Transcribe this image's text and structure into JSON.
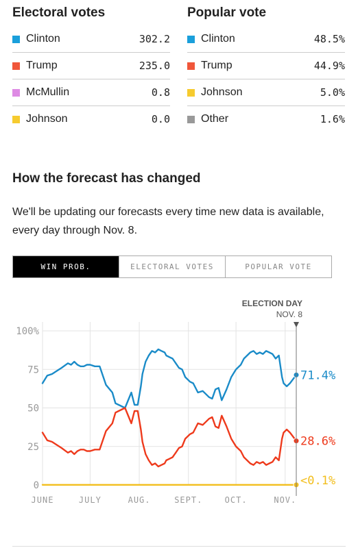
{
  "electoral": {
    "title": "Electoral votes",
    "rows": [
      {
        "name": "Clinton",
        "value": "302.2",
        "color": "#1a9fdb"
      },
      {
        "name": "Trump",
        "value": "235.0",
        "color": "#f0563a"
      },
      {
        "name": "McMullin",
        "value": "0.8",
        "color": "#de8be4"
      },
      {
        "name": "Johnson",
        "value": "0.0",
        "color": "#f6cb2f"
      }
    ]
  },
  "popular": {
    "title": "Popular vote",
    "rows": [
      {
        "name": "Clinton",
        "value": "48.5%",
        "color": "#1a9fdb"
      },
      {
        "name": "Trump",
        "value": "44.9%",
        "color": "#f0563a"
      },
      {
        "name": "Johnson",
        "value": "5.0%",
        "color": "#f6cb2f"
      },
      {
        "name": "Other",
        "value": "1.6%",
        "color": "#999999"
      }
    ]
  },
  "section": {
    "title": "How the forecast has changed",
    "description": "We'll be updating our forecasts every time new data is available, every day through Nov. 8."
  },
  "tabs": [
    {
      "label": "WIN PROB.",
      "active": true
    },
    {
      "label": "ELECTORAL VOTES",
      "active": false
    },
    {
      "label": "POPULAR VOTE",
      "active": false
    }
  ],
  "chart_data": {
    "type": "line",
    "marker_title": "ELECTION DAY",
    "marker_date": "NOV. 8",
    "ylim": [
      0,
      100
    ],
    "y_ticks": [
      0,
      25,
      50,
      75,
      100
    ],
    "y_tick_labels": [
      "0",
      "25",
      "50",
      "75",
      "100%"
    ],
    "x_tick_labels": [
      "JUNE",
      "JULY",
      "AUG.",
      "SEPT.",
      "OCT.",
      "NOV."
    ],
    "x_tick_days": [
      0,
      30,
      61,
      92,
      122,
      153
    ],
    "x_end_day": 160,
    "series": [
      {
        "name": "Clinton",
        "color": "#1a8bc8",
        "end_label": "71.4%",
        "x": [
          0,
          3,
          6,
          9,
          12,
          16,
          18,
          20,
          22,
          24,
          26,
          28,
          30,
          33,
          36,
          40,
          44,
          46,
          48,
          52,
          56,
          58,
          60,
          62,
          63,
          65,
          67,
          69,
          71,
          73,
          75,
          77,
          78,
          80,
          82,
          84,
          86,
          88,
          90,
          93,
          95,
          98,
          101,
          103,
          105,
          107,
          109,
          111,
          113,
          116,
          119,
          122,
          125,
          127,
          129,
          131,
          133,
          135,
          137,
          139,
          141,
          143,
          145,
          147,
          149,
          151,
          152,
          153,
          154,
          156,
          160
        ],
        "values": [
          66,
          71,
          72,
          74,
          76,
          79,
          78,
          80,
          78,
          77,
          77,
          78,
          78,
          77,
          77,
          65,
          60,
          53,
          52,
          50,
          60,
          52,
          52,
          64,
          72,
          80,
          84,
          87,
          86,
          88,
          87,
          86,
          84,
          83,
          82,
          79,
          76,
          75,
          70,
          67,
          66,
          60,
          61,
          59,
          57,
          56,
          62,
          63,
          55,
          62,
          70,
          75,
          78,
          82,
          84,
          86,
          87,
          85,
          86,
          85,
          87,
          86,
          85,
          82,
          84,
          70,
          66,
          65,
          64,
          66,
          71.4
        ]
      },
      {
        "name": "Trump",
        "color": "#ee3a1c",
        "end_label": "28.6%",
        "x": [
          0,
          3,
          6,
          9,
          12,
          16,
          18,
          20,
          22,
          24,
          26,
          28,
          30,
          33,
          36,
          40,
          44,
          46,
          48,
          52,
          56,
          58,
          60,
          62,
          63,
          65,
          67,
          69,
          71,
          73,
          75,
          77,
          78,
          80,
          82,
          84,
          86,
          88,
          90,
          93,
          95,
          98,
          101,
          103,
          105,
          107,
          109,
          111,
          113,
          116,
          119,
          122,
          125,
          127,
          129,
          131,
          133,
          135,
          137,
          139,
          141,
          143,
          145,
          147,
          149,
          151,
          152,
          153,
          154,
          156,
          160
        ],
        "values": [
          34,
          29,
          28,
          26,
          24,
          21,
          22,
          20,
          22,
          23,
          23,
          22,
          22,
          23,
          23,
          35,
          40,
          47,
          48,
          50,
          40,
          48,
          48,
          36,
          28,
          20,
          16,
          13,
          14,
          12,
          13,
          14,
          16,
          17,
          18,
          21,
          24,
          25,
          30,
          33,
          34,
          40,
          39,
          41,
          43,
          44,
          38,
          37,
          45,
          38,
          30,
          25,
          22,
          18,
          16,
          14,
          13,
          15,
          14,
          15,
          13,
          14,
          15,
          18,
          16,
          30,
          34,
          35,
          36,
          34,
          28.6
        ]
      },
      {
        "name": "McMullin",
        "color": "#f2be1d",
        "end_label": "<0.1%",
        "x": [
          0,
          160
        ],
        "values": [
          0.1,
          0.1
        ]
      }
    ]
  }
}
